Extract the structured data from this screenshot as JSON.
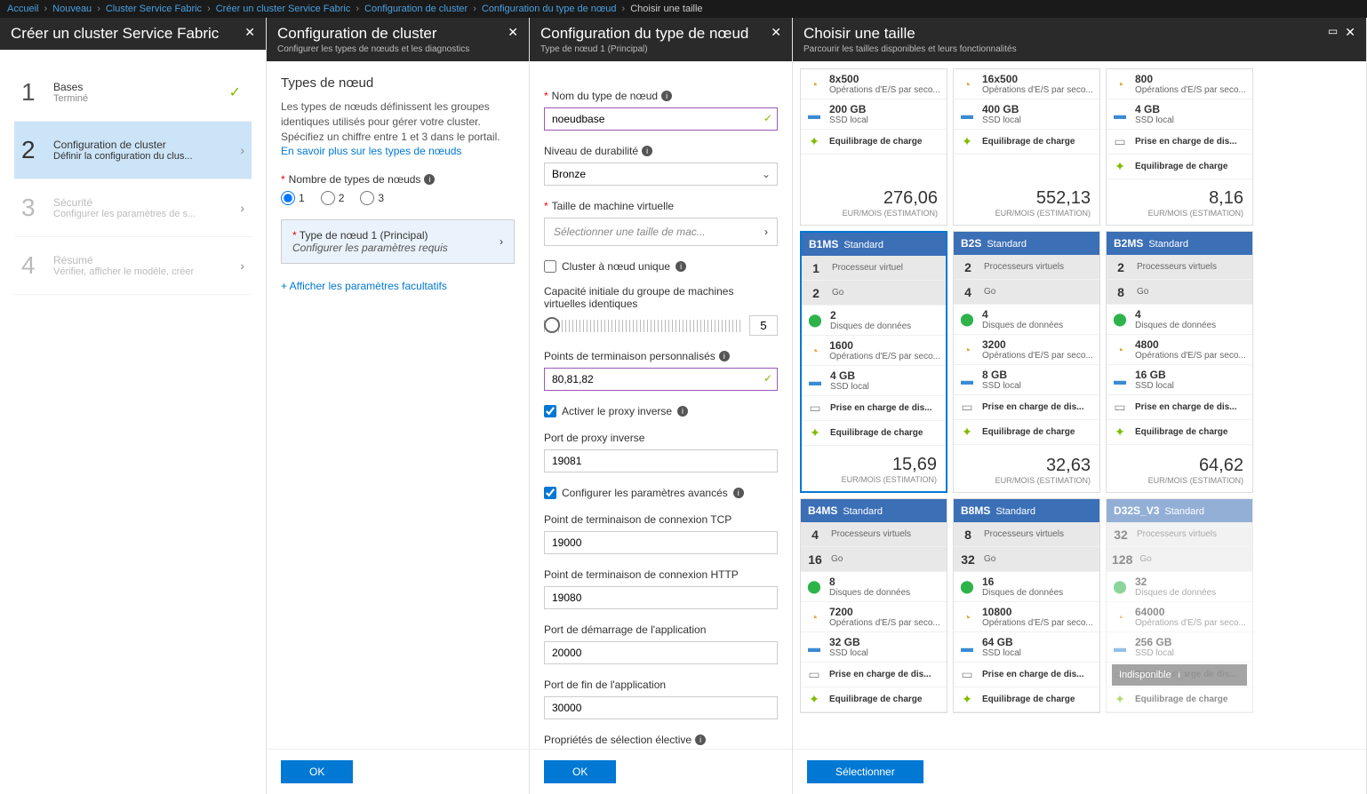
{
  "breadcrumb": [
    "Accueil",
    "Nouveau",
    "Cluster Service Fabric",
    "Créer un cluster Service Fabric",
    "Configuration de cluster",
    "Configuration du type de nœud",
    "Choisir une taille"
  ],
  "blade1": {
    "title": "Créer un cluster Service Fabric",
    "steps": [
      {
        "n": "1",
        "t1": "Bases",
        "t2": "Terminé",
        "done": true
      },
      {
        "n": "2",
        "t1": "Configuration de cluster",
        "t2": "Définir la configuration du clus...",
        "sel": true
      },
      {
        "n": "3",
        "t1": "Sécurité",
        "t2": "Configurer les paramètres de s...",
        "dim": true
      },
      {
        "n": "4",
        "t1": "Résumé",
        "t2": "Vérifier, afficher le modèle, créer",
        "dim": true
      }
    ]
  },
  "blade2": {
    "title": "Configuration de cluster",
    "sub": "Configurer les types de nœuds et les diagnostics",
    "h3": "Types de nœud",
    "desc": "Les types de nœuds définissent les groupes identiques utilisés pour gérer votre cluster. Spécifiez un chiffre entre 1 et 3 dans le portail. ",
    "link": "En savoir plus sur les types de nœuds",
    "countLabel": "Nombre de types de nœuds",
    "count": "1",
    "nodeTypeLabel": "Type de nœud 1 (Principal)",
    "nodeTypeSub": "Configurer les paramètres requis",
    "showOptional": "+ Afficher les paramètres facultatifs",
    "ok": "OK"
  },
  "blade3": {
    "title": "Configuration du type de nœud",
    "sub": "Type de nœud 1 (Principal)",
    "nameLabel": "Nom du type de nœud",
    "name": "noeudbase",
    "durLabel": "Niveau de durabilité",
    "dur": "Bronze",
    "vmLabel": "Taille de machine virtuelle",
    "vmPh": "Sélectionner une taille de mac...",
    "singleNode": "Cluster à nœud unique",
    "capLabel": "Capacité initiale du groupe de machines virtuelles identiques",
    "capVal": "5",
    "endpointsLabel": "Points de terminaison personnalisés",
    "endpoints": "80,81,82",
    "revProxy": "Activer le proxy inverse",
    "revPortLabel": "Port de proxy inverse",
    "revPort": "19081",
    "advanced": "Configurer les paramètres avancés",
    "tcpLabel": "Point de terminaison de connexion TCP",
    "tcp": "19000",
    "httpLabel": "Point de terminaison de connexion HTTP",
    "http": "19080",
    "startLabel": "Port de démarrage de l'application",
    "start": "20000",
    "endLabel": "Port de fin de l'application",
    "end": "30000",
    "electiveLabel": "Propriétés de sélection élective",
    "ok": "OK"
  },
  "blade4": {
    "title": "Choisir une taille",
    "sub": "Parcourir les tailles disponibles et leurs fonctionnalités",
    "select": "Sélectionner",
    "priceUnit": "EUR/MOIS (ESTIMATION)",
    "rowLabels": {
      "cpu1": "Processeur virtuel",
      "cpu": "Processeurs virtuels",
      "ram": "Go",
      "disks": "Disques de données",
      "iops": "Opérations d'E/S par seco...",
      "ssd": "SSD local",
      "premium": "Prise en charge de dis...",
      "lb": "Équilibrage de charge"
    },
    "partials": [
      {
        "iops": "8x500",
        "ssd": "200 GB",
        "lb": true,
        "price": "276,06"
      },
      {
        "iops": "16x500",
        "ssd": "400 GB",
        "lb": true,
        "price": "552,13"
      },
      {
        "iops": "800",
        "ssd": "4 GB",
        "premium": true,
        "lb": true,
        "price": "8,16"
      }
    ],
    "cards": [
      {
        "sku": "B1MS",
        "tier": "Standard",
        "cpu": "1",
        "ram": "2",
        "disks": "2",
        "iops": "1600",
        "ssd": "4 GB",
        "premium": true,
        "lb": true,
        "price": "15,69",
        "sel": true,
        "cpu1": true
      },
      {
        "sku": "B2S",
        "tier": "Standard",
        "cpu": "2",
        "ram": "4",
        "disks": "4",
        "iops": "3200",
        "ssd": "8 GB",
        "premium": true,
        "lb": true,
        "price": "32,63"
      },
      {
        "sku": "B2MS",
        "tier": "Standard",
        "cpu": "2",
        "ram": "8",
        "disks": "4",
        "iops": "4800",
        "ssd": "16 GB",
        "premium": true,
        "lb": true,
        "price": "64,62"
      },
      {
        "sku": "B4MS",
        "tier": "Standard",
        "cpu": "4",
        "ram": "16",
        "disks": "8",
        "iops": "7200",
        "ssd": "32 GB",
        "premium": true,
        "lb": true,
        "price": ""
      },
      {
        "sku": "B8MS",
        "tier": "Standard",
        "cpu": "8",
        "ram": "32",
        "disks": "16",
        "iops": "10800",
        "ssd": "64 GB",
        "premium": true,
        "lb": true,
        "price": ""
      },
      {
        "sku": "D32S_V3",
        "tier": "Standard",
        "cpu": "32",
        "ram": "128",
        "disks": "32",
        "iops": "64000",
        "ssd": "256 GB",
        "premium": true,
        "lb": true,
        "price": "",
        "disabled": true,
        "unavail": "Indisponible"
      }
    ]
  }
}
